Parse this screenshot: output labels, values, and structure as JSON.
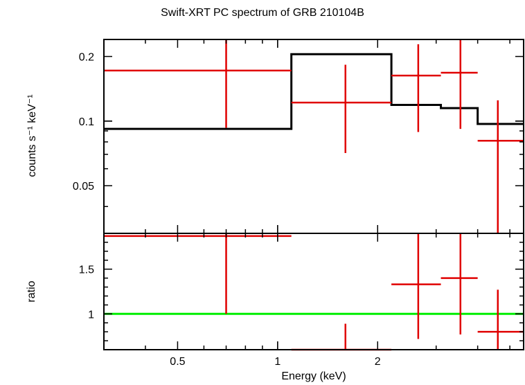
{
  "chart_data": [
    {
      "type": "line",
      "panel": "spectrum",
      "title": "Swift-XRT PC spectrum of GRB 210104B",
      "ylabel": "counts s⁻¹ keV⁻¹",
      "xscale": "log",
      "yscale": "log",
      "xlim": [
        0.3,
        5.5
      ],
      "ylim": [
        0.03,
        0.24
      ],
      "yticklabels": [
        "0.05",
        "0.1",
        "0.2"
      ],
      "yticks": [
        0.05,
        0.1,
        0.2
      ],
      "series": [
        {
          "role": "data",
          "color": "#e00000",
          "points": [
            {
              "x": 0.7,
              "xlo": 0.3,
              "xhi": 1.1,
              "y": 0.172,
              "ylo": 0.093,
              "yhi": 0.24
            },
            {
              "x": 1.6,
              "xlo": 1.1,
              "xhi": 2.2,
              "y": 0.122,
              "ylo": 0.071,
              "yhi": 0.183
            },
            {
              "x": 2.65,
              "xlo": 2.2,
              "xhi": 3.1,
              "y": 0.163,
              "ylo": 0.089,
              "yhi": 0.228
            },
            {
              "x": 3.55,
              "xlo": 3.1,
              "xhi": 4.0,
              "y": 0.168,
              "ylo": 0.092,
              "yhi": 0.24
            },
            {
              "x": 4.6,
              "xlo": 4.0,
              "xhi": 5.5,
              "y": 0.081,
              "ylo": 0.03,
              "yhi": 0.125
            }
          ]
        },
        {
          "role": "model",
          "color": "#000000",
          "step": [
            {
              "xlo": 0.3,
              "xhi": 1.1,
              "y": 0.092
            },
            {
              "xlo": 1.1,
              "xhi": 2.2,
              "y": 0.205
            },
            {
              "xlo": 2.2,
              "xhi": 3.1,
              "y": 0.119
            },
            {
              "xlo": 3.1,
              "xhi": 4.0,
              "y": 0.115
            },
            {
              "xlo": 4.0,
              "xhi": 5.5,
              "y": 0.097
            }
          ]
        }
      ]
    },
    {
      "type": "line",
      "panel": "ratio",
      "xlabel": "Energy (keV)",
      "ylabel": "ratio",
      "xscale": "log",
      "xlim": [
        0.3,
        5.5
      ],
      "ylim": [
        0.6,
        1.9
      ],
      "xticklabels": [
        "0.5",
        "1",
        "2"
      ],
      "xticks": [
        0.5,
        1,
        2
      ],
      "yticklabels": [
        "1",
        "1.5"
      ],
      "yticks": [
        1,
        1.5
      ],
      "reference_line": {
        "y": 1,
        "color": "#00ee00"
      },
      "series": [
        {
          "role": "data",
          "color": "#e00000",
          "points": [
            {
              "x": 0.7,
              "xlo": 0.3,
              "xhi": 1.1,
              "y": 1.87,
              "ylo": 1.0,
              "yhi": 1.9
            },
            {
              "x": 1.6,
              "xlo": 1.1,
              "xhi": 2.2,
              "y": 0.6,
              "ylo": 0.6,
              "yhi": 0.89
            },
            {
              "x": 2.65,
              "xlo": 2.2,
              "xhi": 3.1,
              "y": 1.33,
              "ylo": 0.72,
              "yhi": 1.9
            },
            {
              "x": 3.55,
              "xlo": 3.1,
              "xhi": 4.0,
              "y": 1.4,
              "ylo": 0.77,
              "yhi": 1.9
            },
            {
              "x": 4.6,
              "xlo": 4.0,
              "xhi": 5.5,
              "y": 0.8,
              "ylo": 0.6,
              "yhi": 1.27
            }
          ]
        }
      ]
    }
  ]
}
